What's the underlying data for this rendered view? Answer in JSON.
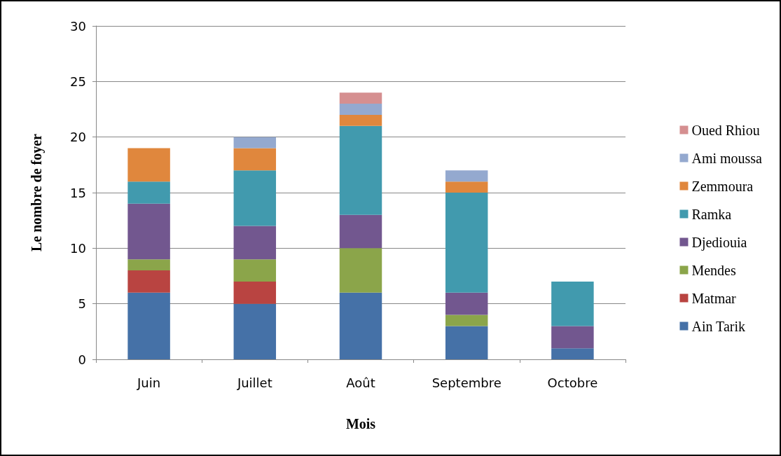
{
  "chart_data": {
    "type": "bar",
    "stacked": true,
    "xlabel": "Mois",
    "ylabel": "Le nombre de foyer",
    "categories": [
      "Juin",
      "Juillet",
      "Août",
      "Septembre",
      "Octobre"
    ],
    "series": [
      {
        "name": "Ain Tarik",
        "color": "#4571a7",
        "values": [
          6,
          5,
          6,
          3,
          1
        ]
      },
      {
        "name": "Matmar",
        "color": "#b94441",
        "values": [
          2,
          2,
          0,
          0,
          0
        ]
      },
      {
        "name": "Mendes",
        "color": "#8ba54a",
        "values": [
          1,
          2,
          4,
          1,
          0
        ]
      },
      {
        "name": "Djediouia",
        "color": "#72578f",
        "values": [
          5,
          3,
          3,
          2,
          2
        ]
      },
      {
        "name": "Ramka",
        "color": "#419aae",
        "values": [
          2,
          5,
          8,
          9,
          4
        ]
      },
      {
        "name": "Zemmoura",
        "color": "#e0873d",
        "values": [
          3,
          2,
          1,
          1,
          0
        ]
      },
      {
        "name": "Ami moussa",
        "color": "#94a9cf",
        "values": [
          0,
          1,
          1,
          1,
          0
        ]
      },
      {
        "name": "Oued Rhiou",
        "color": "#d58f90",
        "values": [
          0,
          0,
          1,
          0,
          0
        ]
      }
    ],
    "ylim": [
      0,
      30
    ],
    "yticks": [
      0,
      5,
      10,
      15,
      20,
      25,
      30
    ],
    "grid": "y",
    "legend": "right"
  }
}
